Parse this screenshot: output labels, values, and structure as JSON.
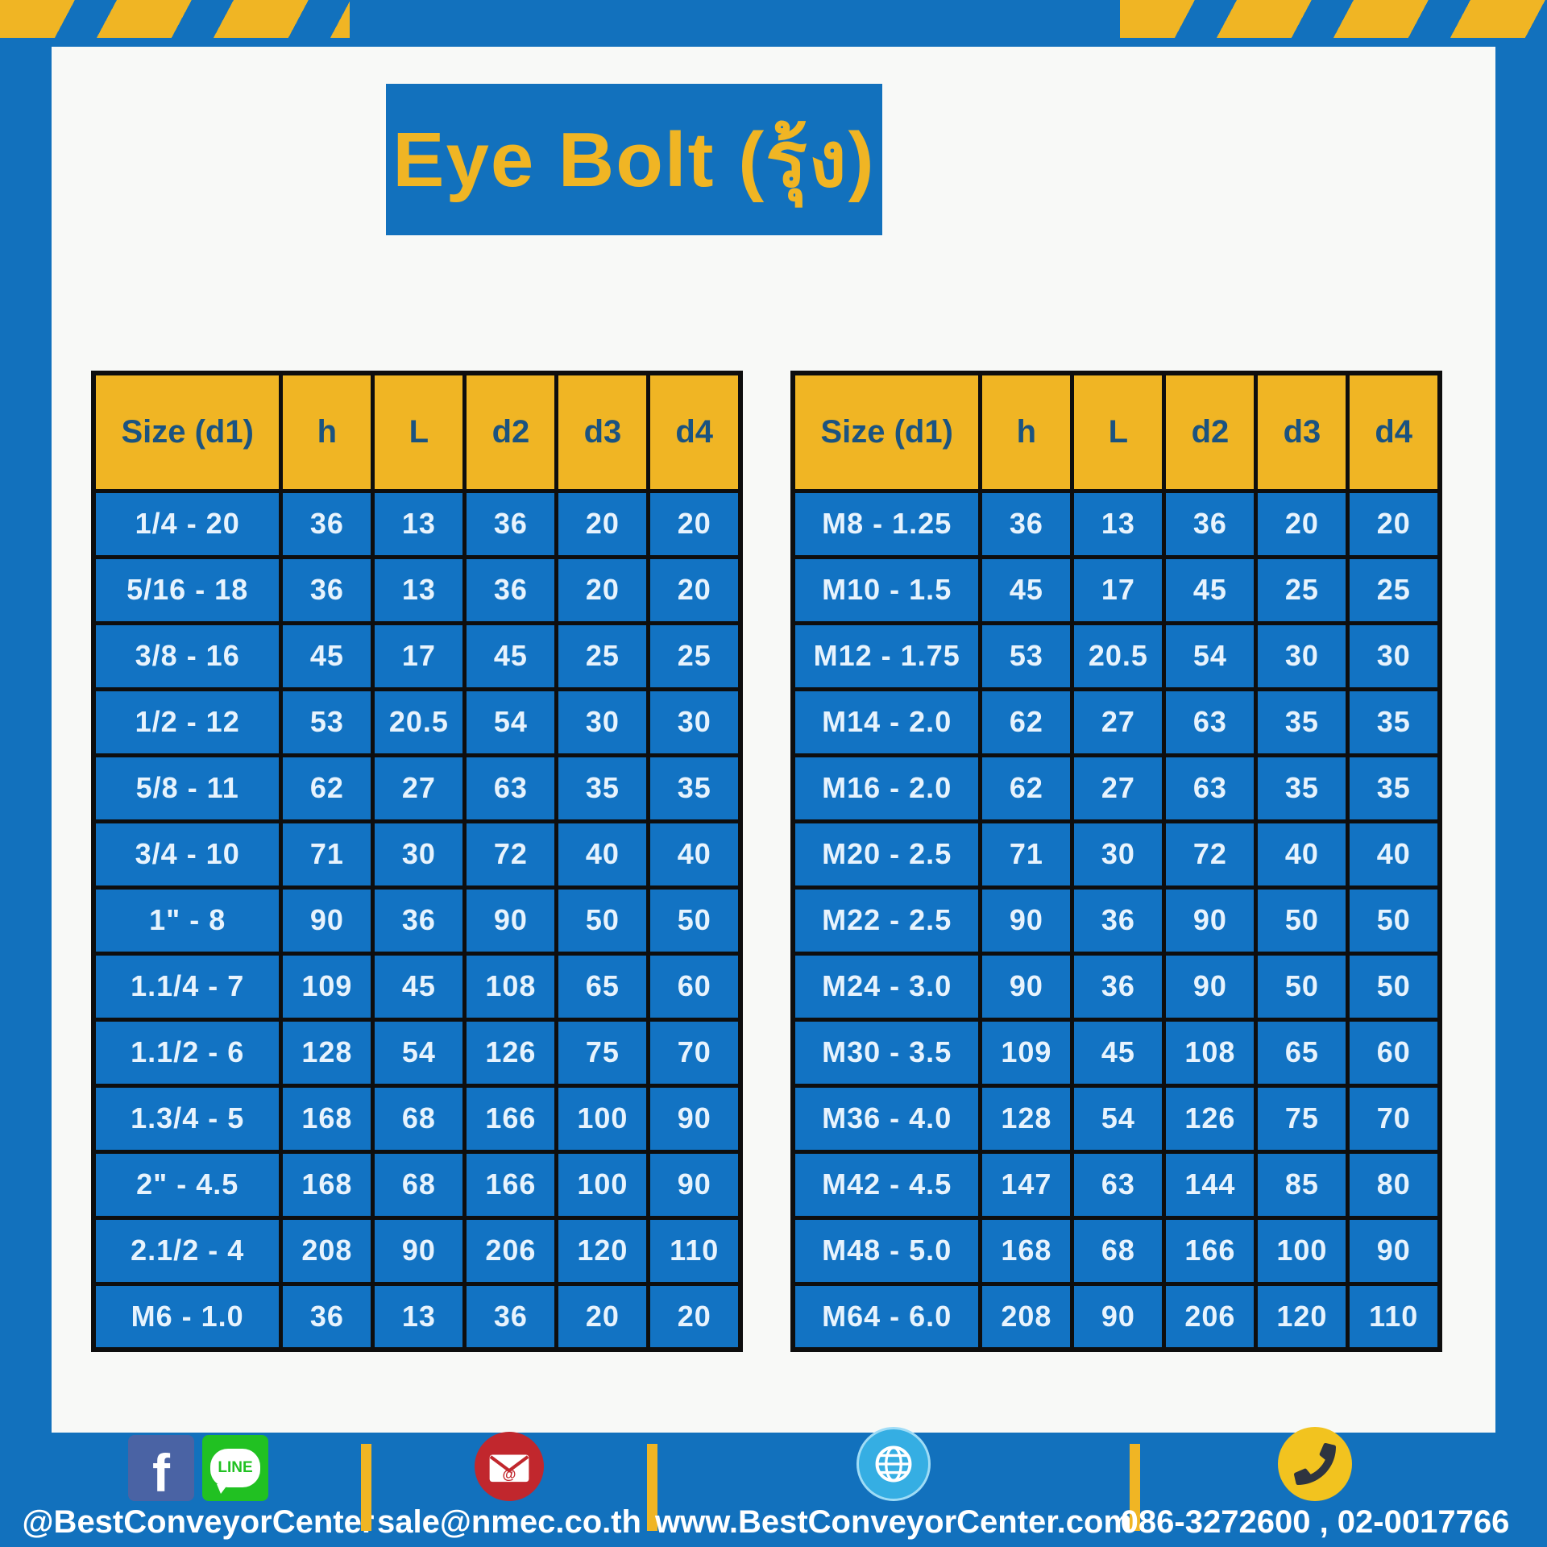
{
  "title": "Eye Bolt (รุ้ง)",
  "tables": {
    "headers": [
      "Size (d1)",
      "h",
      "L",
      "d2",
      "d3",
      "d4"
    ],
    "left_rows": [
      [
        "1/4 - 20",
        "36",
        "13",
        "36",
        "20",
        "20"
      ],
      [
        "5/16 - 18",
        "36",
        "13",
        "36",
        "20",
        "20"
      ],
      [
        "3/8 - 16",
        "45",
        "17",
        "45",
        "25",
        "25"
      ],
      [
        "1/2 - 12",
        "53",
        "20.5",
        "54",
        "30",
        "30"
      ],
      [
        "5/8 - 11",
        "62",
        "27",
        "63",
        "35",
        "35"
      ],
      [
        "3/4 - 10",
        "71",
        "30",
        "72",
        "40",
        "40"
      ],
      [
        "1\" - 8",
        "90",
        "36",
        "90",
        "50",
        "50"
      ],
      [
        "1.1/4 - 7",
        "109",
        "45",
        "108",
        "65",
        "60"
      ],
      [
        "1.1/2 - 6",
        "128",
        "54",
        "126",
        "75",
        "70"
      ],
      [
        "1.3/4 - 5",
        "168",
        "68",
        "166",
        "100",
        "90"
      ],
      [
        "2\" - 4.5",
        "168",
        "68",
        "166",
        "100",
        "90"
      ],
      [
        "2.1/2 - 4",
        "208",
        "90",
        "206",
        "120",
        "110"
      ],
      [
        "M6 - 1.0",
        "36",
        "13",
        "36",
        "20",
        "20"
      ]
    ],
    "right_rows": [
      [
        "M8 - 1.25",
        "36",
        "13",
        "36",
        "20",
        "20"
      ],
      [
        "M10 - 1.5",
        "45",
        "17",
        "45",
        "25",
        "25"
      ],
      [
        "M12 - 1.75",
        "53",
        "20.5",
        "54",
        "30",
        "30"
      ],
      [
        "M14 - 2.0",
        "62",
        "27",
        "63",
        "35",
        "35"
      ],
      [
        "M16 - 2.0",
        "62",
        "27",
        "63",
        "35",
        "35"
      ],
      [
        "M20 - 2.5",
        "71",
        "30",
        "72",
        "40",
        "40"
      ],
      [
        "M22 - 2.5",
        "90",
        "36",
        "90",
        "50",
        "50"
      ],
      [
        "M24 - 3.0",
        "90",
        "36",
        "90",
        "50",
        "50"
      ],
      [
        "M30 - 3.5",
        "109",
        "45",
        "108",
        "65",
        "60"
      ],
      [
        "M36 - 4.0",
        "128",
        "54",
        "126",
        "75",
        "70"
      ],
      [
        "M42 - 4.5",
        "147",
        "63",
        "144",
        "85",
        "80"
      ],
      [
        "M48 - 5.0",
        "168",
        "68",
        "166",
        "100",
        "90"
      ],
      [
        "M64 - 6.0",
        "208",
        "90",
        "206",
        "120",
        "110"
      ]
    ]
  },
  "footer": {
    "social_handle": "@BestConveyorCenter",
    "line_label": "LINE",
    "facebook_letter": "f",
    "email": "sale@nmec.co.th",
    "website": "www.BestConveyorCenter.com",
    "phones": "086-3272600 , 02-0017766"
  },
  "colors": {
    "frame_blue": "#1271bd",
    "cell_blue": "#1273c3",
    "accent_yellow": "#f0b524",
    "header_text_navy": "#1b5380",
    "cell_text": "#e7f3fd",
    "table_border_black": "#0e0e0e",
    "content_white": "#f8f9f7",
    "facebook_blue": "#4a63a4",
    "line_green": "#21c122",
    "mail_red": "#c1272d",
    "globe_blue": "#35aee3",
    "phone_yellow": "#f2c31f"
  }
}
